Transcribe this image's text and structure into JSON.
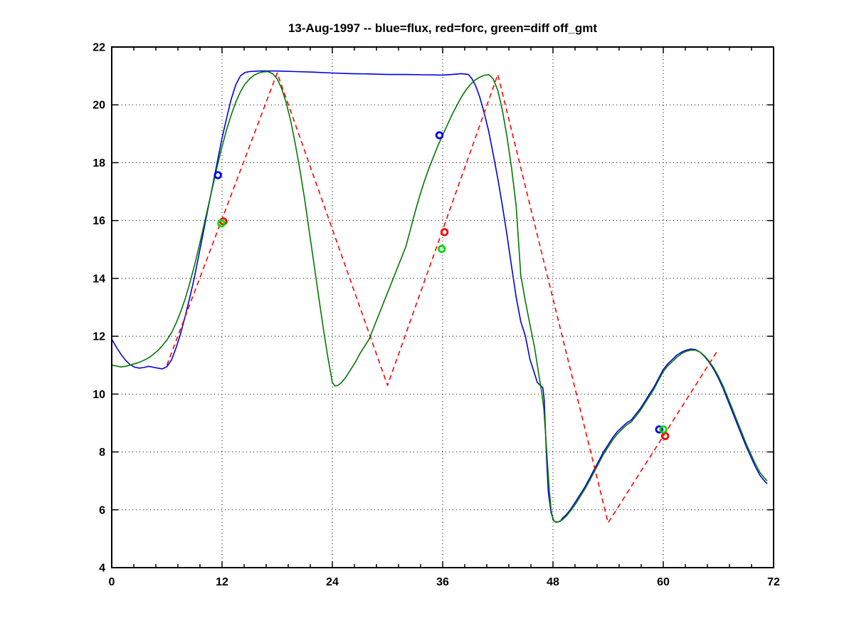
{
  "chart_data": {
    "type": "line",
    "title": "13-Aug-1997 -- blue=flux, red=forc, green=diff off_gmt",
    "xlabel": "",
    "ylabel": "",
    "xlim": [
      0,
      72
    ],
    "ylim": [
      4,
      22
    ],
    "xticks": [
      0,
      12,
      24,
      36,
      48,
      60,
      72
    ],
    "yticks": [
      4,
      6,
      8,
      10,
      12,
      14,
      16,
      18,
      20,
      22
    ],
    "x_minor_step": 2.4,
    "grid": "dotted",
    "legend_in_title": {
      "blue": "flux",
      "red": "forc",
      "green": "diff"
    },
    "series": [
      {
        "name": "flux",
        "color": "#0000dd",
        "style": "solid",
        "points": [
          [
            0,
            11.9
          ],
          [
            0.5,
            11.62
          ],
          [
            1,
            11.38
          ],
          [
            1.5,
            11.17
          ],
          [
            2,
            11.02
          ],
          [
            2.5,
            10.93
          ],
          [
            3,
            10.9
          ],
          [
            3.5,
            10.92
          ],
          [
            4,
            10.96
          ],
          [
            4.5,
            10.93
          ],
          [
            5,
            10.9
          ],
          [
            5.5,
            10.87
          ],
          [
            6,
            10.95
          ],
          [
            6.5,
            11.18
          ],
          [
            7,
            11.6
          ],
          [
            7.5,
            12.1
          ],
          [
            8,
            12.7
          ],
          [
            8.5,
            13.35
          ],
          [
            9,
            14.05
          ],
          [
            9.5,
            14.85
          ],
          [
            10,
            15.65
          ],
          [
            10.5,
            16.45
          ],
          [
            11,
            17.25
          ],
          [
            11.5,
            18.05
          ],
          [
            12,
            18.85
          ],
          [
            12.5,
            19.55
          ],
          [
            13,
            20.2
          ],
          [
            13.5,
            20.7
          ],
          [
            14,
            21.0
          ],
          [
            14.5,
            21.12
          ],
          [
            15,
            21.15
          ],
          [
            16,
            21.17
          ],
          [
            18,
            21.17
          ],
          [
            20,
            21.15
          ],
          [
            22,
            21.13
          ],
          [
            24,
            21.1
          ],
          [
            26,
            21.08
          ],
          [
            28,
            21.07
          ],
          [
            30,
            21.05
          ],
          [
            32,
            21.05
          ],
          [
            34,
            21.04
          ],
          [
            36,
            21.03
          ],
          [
            37,
            21.05
          ],
          [
            38,
            21.08
          ],
          [
            38.8,
            21.05
          ],
          [
            39.2,
            20.9
          ],
          [
            39.6,
            20.65
          ],
          [
            40,
            20.3
          ],
          [
            40.5,
            19.75
          ],
          [
            41,
            19.1
          ],
          [
            41.5,
            18.3
          ],
          [
            42,
            17.45
          ],
          [
            42.5,
            16.5
          ],
          [
            43,
            15.5
          ],
          [
            43.5,
            14.4
          ],
          [
            44,
            13.35
          ],
          [
            44.5,
            12.5
          ],
          [
            45,
            12.0
          ],
          [
            45.5,
            11.2
          ],
          [
            46,
            10.7
          ],
          [
            46.3,
            10.4
          ],
          [
            46.9,
            10.22
          ],
          [
            47.05,
            9.8
          ],
          [
            47.15,
            9.0
          ],
          [
            47.3,
            7.8
          ],
          [
            47.5,
            6.6
          ],
          [
            47.8,
            5.9
          ],
          [
            48.1,
            5.62
          ],
          [
            48.4,
            5.57
          ],
          [
            48.8,
            5.6
          ],
          [
            49,
            5.7
          ],
          [
            49.5,
            5.85
          ],
          [
            50,
            6.05
          ],
          [
            50.5,
            6.3
          ],
          [
            51,
            6.55
          ],
          [
            51.5,
            6.8
          ],
          [
            52,
            7.1
          ],
          [
            52.5,
            7.4
          ],
          [
            53,
            7.7
          ],
          [
            53.5,
            8.0
          ],
          [
            54,
            8.25
          ],
          [
            54.5,
            8.5
          ],
          [
            55,
            8.7
          ],
          [
            55.5,
            8.85
          ],
          [
            56,
            9.0
          ],
          [
            56.5,
            9.1
          ],
          [
            57,
            9.3
          ],
          [
            57.5,
            9.5
          ],
          [
            58,
            9.75
          ],
          [
            58.5,
            10.0
          ],
          [
            59,
            10.25
          ],
          [
            59.5,
            10.55
          ],
          [
            60,
            10.85
          ],
          [
            60.5,
            11.05
          ],
          [
            61,
            11.2
          ],
          [
            61.5,
            11.35
          ],
          [
            62,
            11.45
          ],
          [
            62.5,
            11.52
          ],
          [
            63,
            11.56
          ],
          [
            63.5,
            11.54
          ],
          [
            64,
            11.45
          ],
          [
            64.5,
            11.3
          ],
          [
            65,
            11.1
          ],
          [
            65.5,
            10.85
          ],
          [
            66,
            10.55
          ],
          [
            66.5,
            10.2
          ],
          [
            67,
            9.8
          ],
          [
            67.5,
            9.4
          ],
          [
            68,
            9.0
          ],
          [
            68.5,
            8.6
          ],
          [
            69,
            8.2
          ],
          [
            69.5,
            7.85
          ],
          [
            70,
            7.5
          ],
          [
            70.5,
            7.2
          ],
          [
            71,
            7.0
          ],
          [
            71.3,
            6.9
          ]
        ]
      },
      {
        "name": "forc",
        "color": "#ff0000",
        "style": "dashed",
        "points": [
          [
            6,
            11.0
          ],
          [
            18,
            21.1
          ],
          [
            30,
            10.3
          ],
          [
            42,
            21.05
          ],
          [
            54,
            5.55
          ],
          [
            66,
            11.55
          ]
        ]
      },
      {
        "name": "diff",
        "color": "#007a00",
        "style": "solid",
        "points": [
          [
            0,
            11.0
          ],
          [
            0.5,
            10.97
          ],
          [
            1,
            10.94
          ],
          [
            1.5,
            10.96
          ],
          [
            2,
            11.0
          ],
          [
            2.5,
            11.05
          ],
          [
            3,
            11.1
          ],
          [
            3.5,
            11.17
          ],
          [
            4,
            11.25
          ],
          [
            4.5,
            11.37
          ],
          [
            5,
            11.5
          ],
          [
            5.5,
            11.67
          ],
          [
            6,
            11.87
          ],
          [
            6.5,
            12.12
          ],
          [
            7,
            12.45
          ],
          [
            7.5,
            12.85
          ],
          [
            8,
            13.3
          ],
          [
            8.5,
            13.85
          ],
          [
            9,
            14.45
          ],
          [
            9.5,
            15.1
          ],
          [
            10,
            15.8
          ],
          [
            10.5,
            16.5
          ],
          [
            11,
            17.2
          ],
          [
            11.5,
            17.9
          ],
          [
            12,
            18.55
          ],
          [
            12.5,
            19.15
          ],
          [
            13,
            19.65
          ],
          [
            13.5,
            20.1
          ],
          [
            14,
            20.45
          ],
          [
            14.5,
            20.72
          ],
          [
            15,
            20.9
          ],
          [
            15.5,
            21.03
          ],
          [
            16,
            21.1
          ],
          [
            16.5,
            21.14
          ],
          [
            17,
            21.15
          ],
          [
            17.5,
            21.08
          ],
          [
            18,
            20.9
          ],
          [
            18.5,
            20.55
          ],
          [
            19,
            20.05
          ],
          [
            19.5,
            19.4
          ],
          [
            20,
            18.6
          ],
          [
            20.5,
            17.7
          ],
          [
            21,
            16.7
          ],
          [
            21.5,
            15.6
          ],
          [
            22,
            14.5
          ],
          [
            22.5,
            13.4
          ],
          [
            23,
            12.3
          ],
          [
            23.5,
            11.3
          ],
          [
            24,
            10.4
          ],
          [
            24.3,
            10.28
          ],
          [
            24.6,
            10.3
          ],
          [
            25,
            10.4
          ],
          [
            25.5,
            10.6
          ],
          [
            26,
            10.85
          ],
          [
            26.5,
            11.1
          ],
          [
            27,
            11.4
          ],
          [
            27.5,
            11.65
          ],
          [
            28,
            11.9
          ],
          [
            28.5,
            12.3
          ],
          [
            29,
            12.7
          ],
          [
            29.5,
            13.1
          ],
          [
            30,
            13.5
          ],
          [
            30.5,
            13.9
          ],
          [
            31,
            14.3
          ],
          [
            31.5,
            14.7
          ],
          [
            32,
            15.1
          ],
          [
            32.5,
            15.7
          ],
          [
            33,
            16.3
          ],
          [
            33.5,
            16.85
          ],
          [
            34,
            17.35
          ],
          [
            34.5,
            17.8
          ],
          [
            35,
            18.2
          ],
          [
            35.5,
            18.6
          ],
          [
            36,
            18.95
          ],
          [
            36.5,
            19.3
          ],
          [
            37,
            19.65
          ],
          [
            37.5,
            19.95
          ],
          [
            38,
            20.25
          ],
          [
            38.5,
            20.5
          ],
          [
            39,
            20.7
          ],
          [
            39.5,
            20.85
          ],
          [
            40,
            20.95
          ],
          [
            40.5,
            21.02
          ],
          [
            41,
            21.05
          ],
          [
            41.5,
            20.9
          ],
          [
            42,
            20.5
          ],
          [
            42.5,
            19.8
          ],
          [
            43,
            18.9
          ],
          [
            43.5,
            17.8
          ],
          [
            44,
            16.5
          ],
          [
            44.5,
            14.1
          ],
          [
            45,
            13.2
          ],
          [
            45.5,
            12.4
          ],
          [
            46,
            11.6
          ],
          [
            46.5,
            10.6
          ],
          [
            46.8,
            10.0
          ],
          [
            47,
            9.5
          ],
          [
            47.2,
            8.6
          ],
          [
            47.4,
            7.6
          ],
          [
            47.6,
            6.7
          ],
          [
            47.8,
            6.0
          ],
          [
            48,
            5.65
          ],
          [
            48.3,
            5.57
          ],
          [
            48.7,
            5.6
          ],
          [
            49,
            5.65
          ],
          [
            49.5,
            5.8
          ],
          [
            50,
            6.0
          ],
          [
            50.5,
            6.22
          ],
          [
            51,
            6.48
          ],
          [
            51.5,
            6.73
          ],
          [
            52,
            7.02
          ],
          [
            52.5,
            7.32
          ],
          [
            53,
            7.62
          ],
          [
            53.5,
            7.92
          ],
          [
            54,
            8.17
          ],
          [
            54.5,
            8.42
          ],
          [
            55,
            8.62
          ],
          [
            55.5,
            8.78
          ],
          [
            56,
            8.93
          ],
          [
            56.5,
            9.03
          ],
          [
            57,
            9.23
          ],
          [
            57.5,
            9.43
          ],
          [
            58,
            9.68
          ],
          [
            58.5,
            9.93
          ],
          [
            59,
            10.18
          ],
          [
            59.5,
            10.48
          ],
          [
            60,
            10.78
          ],
          [
            60.5,
            10.98
          ],
          [
            61,
            11.13
          ],
          [
            61.5,
            11.28
          ],
          [
            62,
            11.4
          ],
          [
            62.5,
            11.48
          ],
          [
            63,
            11.52
          ],
          [
            63.5,
            11.52
          ],
          [
            64,
            11.45
          ],
          [
            64.5,
            11.32
          ],
          [
            65,
            11.13
          ],
          [
            65.5,
            10.9
          ],
          [
            66,
            10.62
          ],
          [
            66.5,
            10.28
          ],
          [
            67,
            9.9
          ],
          [
            67.5,
            9.5
          ],
          [
            68,
            9.1
          ],
          [
            68.5,
            8.7
          ],
          [
            69,
            8.3
          ],
          [
            69.5,
            7.95
          ],
          [
            70,
            7.6
          ],
          [
            70.5,
            7.3
          ],
          [
            71,
            7.1
          ],
          [
            71.3,
            7.0
          ]
        ]
      }
    ],
    "markers": [
      {
        "name": "flux-obs",
        "color": "#0000ee",
        "points": [
          [
            11.55,
            17.57
          ],
          [
            35.65,
            18.95
          ],
          [
            59.55,
            8.78
          ]
        ]
      },
      {
        "name": "forc-obs",
        "color": "#ff0000",
        "points": [
          [
            12.15,
            15.97
          ],
          [
            36.2,
            15.6
          ],
          [
            60.2,
            8.55
          ]
        ]
      },
      {
        "name": "diff-obs",
        "color": "#00dd00",
        "points": [
          [
            11.92,
            15.9
          ],
          [
            35.9,
            15.02
          ],
          [
            60.0,
            8.78
          ]
        ]
      }
    ]
  }
}
